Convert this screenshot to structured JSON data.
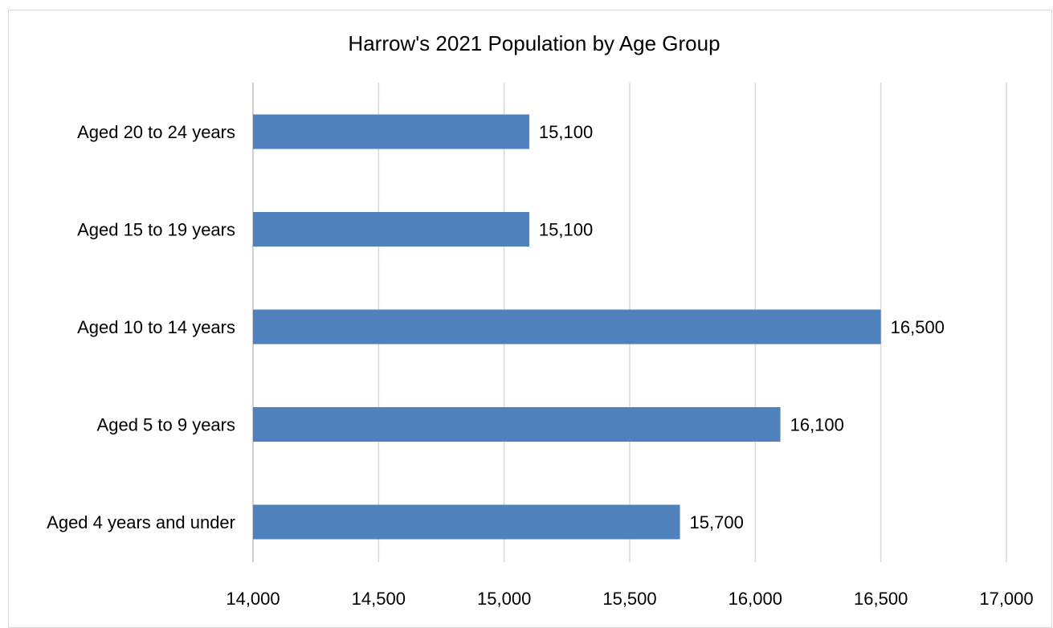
{
  "chart_data": {
    "type": "bar",
    "orientation": "horizontal",
    "title": "Harrow's 2021 Population by Age Group",
    "xlabel": "",
    "ylabel": "",
    "categories": [
      "Aged 20 to 24 years",
      "Aged 15 to 19 years",
      "Aged 10 to 14 years",
      "Aged 5 to 9 years",
      "Aged 4 years and under"
    ],
    "values": [
      15100,
      15100,
      16500,
      16100,
      15700
    ],
    "data_labels": [
      "15,100",
      "15,100",
      "16,500",
      "16,100",
      "15,700"
    ],
    "xlim": [
      14000,
      17000
    ],
    "x_ticks": [
      14000,
      14500,
      15000,
      15500,
      16000,
      16500,
      17000
    ],
    "x_tick_labels": [
      "14,000",
      "14,500",
      "15,000",
      "15,500",
      "16,000",
      "16,500",
      "17,000"
    ],
    "grid": true,
    "legend": "none",
    "bar_color": "#4f81bd"
  }
}
